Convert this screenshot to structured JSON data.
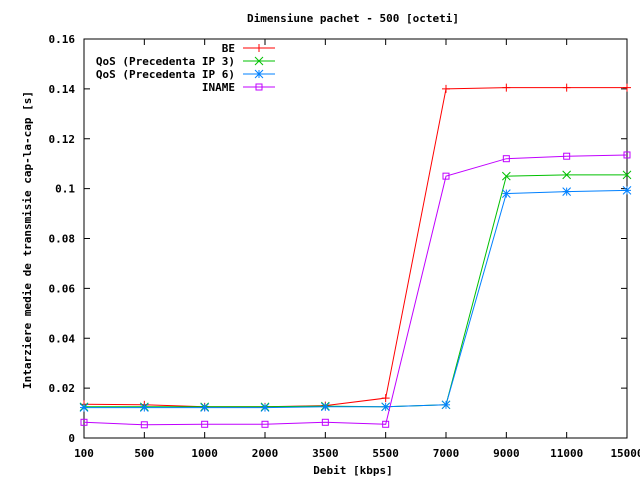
{
  "chart_data": {
    "type": "line",
    "title": "Dimensiune pachet - 500 [octeti]",
    "xlabel": "Debit [kbps]",
    "ylabel": "Intarziere medie de transmisie cap-la-cap [s]",
    "categories": [
      "100",
      "500",
      "1000",
      "2000",
      "3500",
      "5500",
      "7000",
      "9000",
      "11000",
      "15000"
    ],
    "ylim": [
      0,
      0.16
    ],
    "yticks": [
      "0",
      "0.02",
      "0.04",
      "0.06",
      "0.08",
      "0.1",
      "0.12",
      "0.14",
      "0.16"
    ],
    "grid": false,
    "legend_position": "top-right",
    "series": [
      {
        "name": "BE",
        "color": "#ff0000",
        "marker": "plus",
        "values": [
          0.0135,
          0.0133,
          0.0125,
          0.0125,
          0.013,
          0.016,
          0.14,
          0.1405,
          0.1405,
          0.1405
        ]
      },
      {
        "name": "QoS (Precedenta IP 3)",
        "color": "#00c000",
        "marker": "cross",
        "values": [
          0.0125,
          0.0125,
          0.0125,
          0.0125,
          0.0128,
          0.0125,
          0.0133,
          0.105,
          0.1055,
          0.1055
        ]
      },
      {
        "name": "QoS (Precedenta IP 6)",
        "color": "#0080ff",
        "marker": "star",
        "values": [
          0.0122,
          0.0122,
          0.0122,
          0.0122,
          0.0125,
          0.0125,
          0.0133,
          0.098,
          0.0988,
          0.0993
        ]
      },
      {
        "name": "INAME",
        "color": "#c000ff",
        "marker": "square",
        "values": [
          0.0063,
          0.0053,
          0.0055,
          0.0055,
          0.0063,
          0.0055,
          0.105,
          0.112,
          0.113,
          0.1135
        ]
      }
    ]
  }
}
